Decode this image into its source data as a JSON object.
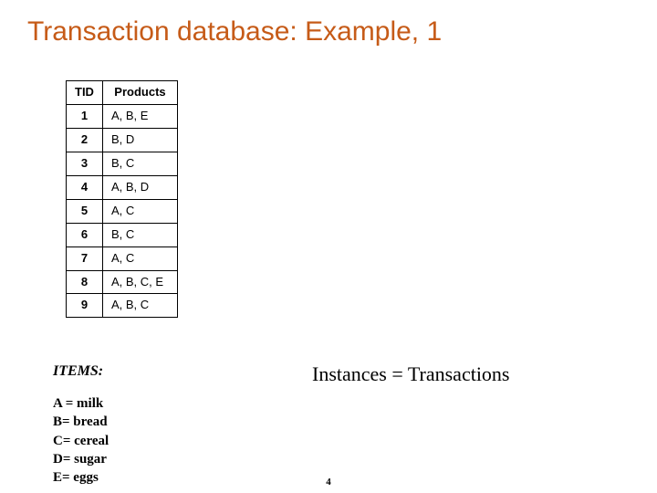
{
  "title": "Transaction database: Example, 1",
  "title_color": "#c65b18",
  "table": {
    "columns": [
      "TID",
      "Products"
    ],
    "rows": [
      [
        "1",
        "A, B, E"
      ],
      [
        "2",
        "B, D"
      ],
      [
        "3",
        "B, C"
      ],
      [
        "4",
        "A, B, D"
      ],
      [
        "5",
        "A, C"
      ],
      [
        "6",
        "B, C"
      ],
      [
        "7",
        "A, C"
      ],
      [
        "8",
        "A, B, C, E"
      ],
      [
        "9",
        "A, B, C"
      ]
    ],
    "border_color": "#000000",
    "header_fontsize": 13,
    "cell_fontsize": 13
  },
  "items_heading": "ITEMS:",
  "items_list": [
    "A = milk",
    "B= bread",
    "C= cereal",
    "D= sugar",
    "E= eggs"
  ],
  "instances_text": "Instances = Transactions",
  "slide_number": "4",
  "background_color": "#ffffff"
}
